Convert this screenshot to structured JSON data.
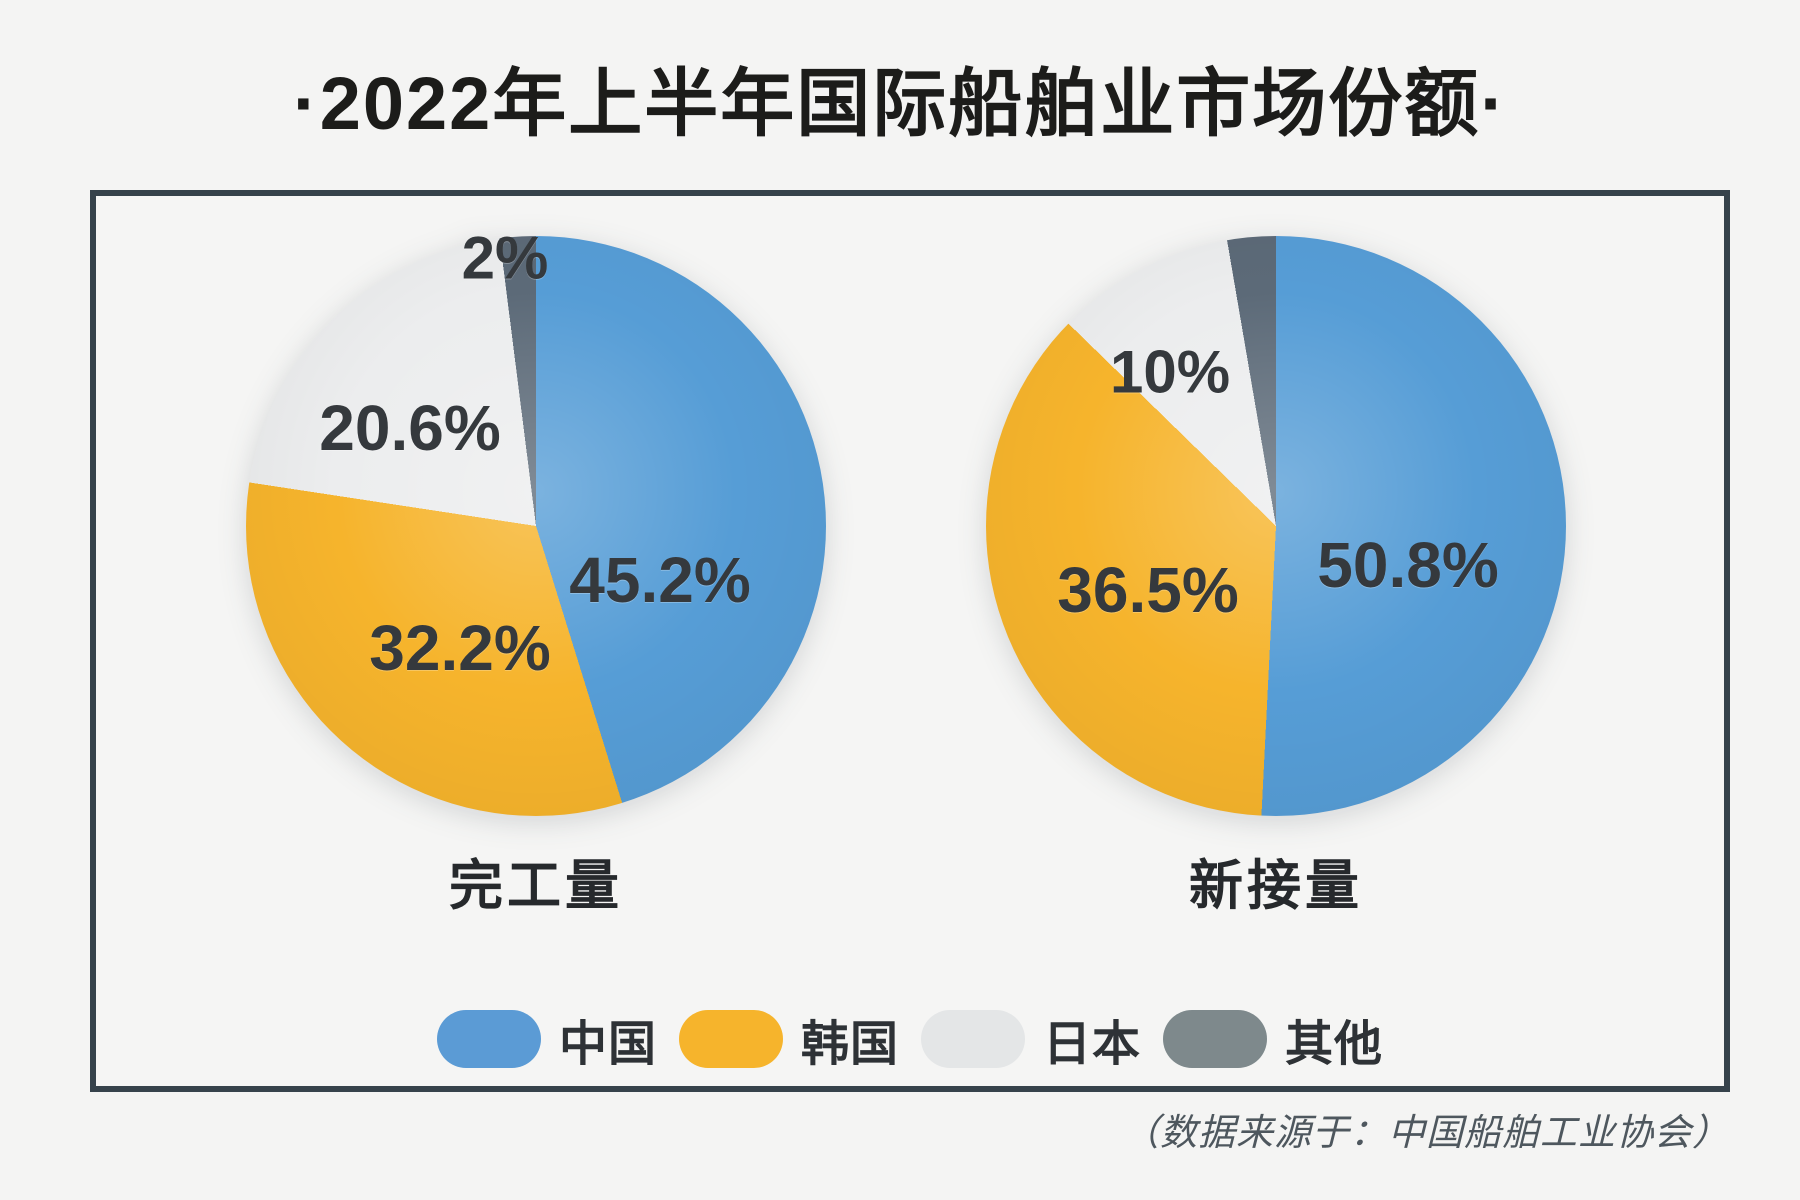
{
  "title": "·2022年上半年国际船舶业市场份额·",
  "source_note": "（数据来源于：中国船舶工业协会）",
  "colors": {
    "china": "#569dd6",
    "korea": "#f6b42c",
    "japan": "#ecedee",
    "other": "#5c6a78",
    "panel_border": "#36424b",
    "background": "#f4f4f3"
  },
  "slice_colors": [
    "#569dd6",
    "#f6b42c",
    "#ecedee",
    "#5c6a78"
  ],
  "legend": [
    {
      "label": "中国",
      "color": "#5b9bd5"
    },
    {
      "label": "韩国",
      "color": "#f6b42c"
    },
    {
      "label": "日本",
      "color": "#e4e6e7"
    },
    {
      "label": "其他",
      "color": "#7e898c"
    }
  ],
  "chart_data": [
    {
      "type": "pie",
      "title": "完工量",
      "categories": [
        "中国",
        "韩国",
        "日本",
        "其他"
      ],
      "values": [
        45.2,
        32.2,
        20.6,
        2
      ],
      "unit": "%",
      "display_labels": [
        "45.2%",
        "32.2%",
        "20.6%",
        "2%"
      ],
      "start_angle_deg": 0,
      "direction": "clockwise"
    },
    {
      "type": "pie",
      "title": "新接量",
      "categories": [
        "中国",
        "韩国",
        "日本",
        "其他"
      ],
      "values": [
        50.8,
        36.5,
        10,
        2.7
      ],
      "unit": "%",
      "display_labels": [
        "50.8%",
        "36.5%",
        "10%",
        ""
      ],
      "start_angle_deg": 0,
      "direction": "clockwise"
    }
  ]
}
